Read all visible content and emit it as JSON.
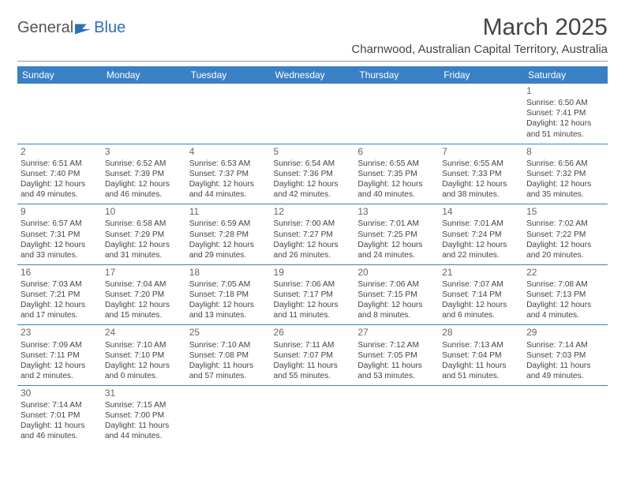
{
  "logo": {
    "text1": "General",
    "text2": "Blue"
  },
  "title": "March 2025",
  "location": "Charnwood, Australian Capital Territory, Australia",
  "colors": {
    "header_bg": "#3a80c4",
    "header_fg": "#ffffff",
    "border": "#3a80c4",
    "text": "#444444",
    "logo_accent": "#2d6fb5"
  },
  "weekdays": [
    "Sunday",
    "Monday",
    "Tuesday",
    "Wednesday",
    "Thursday",
    "Friday",
    "Saturday"
  ],
  "weeks": [
    [
      null,
      null,
      null,
      null,
      null,
      null,
      {
        "n": "1",
        "sr": "Sunrise: 6:50 AM",
        "ss": "Sunset: 7:41 PM",
        "d1": "Daylight: 12 hours",
        "d2": "and 51 minutes."
      }
    ],
    [
      {
        "n": "2",
        "sr": "Sunrise: 6:51 AM",
        "ss": "Sunset: 7:40 PM",
        "d1": "Daylight: 12 hours",
        "d2": "and 49 minutes."
      },
      {
        "n": "3",
        "sr": "Sunrise: 6:52 AM",
        "ss": "Sunset: 7:39 PM",
        "d1": "Daylight: 12 hours",
        "d2": "and 46 minutes."
      },
      {
        "n": "4",
        "sr": "Sunrise: 6:53 AM",
        "ss": "Sunset: 7:37 PM",
        "d1": "Daylight: 12 hours",
        "d2": "and 44 minutes."
      },
      {
        "n": "5",
        "sr": "Sunrise: 6:54 AM",
        "ss": "Sunset: 7:36 PM",
        "d1": "Daylight: 12 hours",
        "d2": "and 42 minutes."
      },
      {
        "n": "6",
        "sr": "Sunrise: 6:55 AM",
        "ss": "Sunset: 7:35 PM",
        "d1": "Daylight: 12 hours",
        "d2": "and 40 minutes."
      },
      {
        "n": "7",
        "sr": "Sunrise: 6:55 AM",
        "ss": "Sunset: 7:33 PM",
        "d1": "Daylight: 12 hours",
        "d2": "and 38 minutes."
      },
      {
        "n": "8",
        "sr": "Sunrise: 6:56 AM",
        "ss": "Sunset: 7:32 PM",
        "d1": "Daylight: 12 hours",
        "d2": "and 35 minutes."
      }
    ],
    [
      {
        "n": "9",
        "sr": "Sunrise: 6:57 AM",
        "ss": "Sunset: 7:31 PM",
        "d1": "Daylight: 12 hours",
        "d2": "and 33 minutes."
      },
      {
        "n": "10",
        "sr": "Sunrise: 6:58 AM",
        "ss": "Sunset: 7:29 PM",
        "d1": "Daylight: 12 hours",
        "d2": "and 31 minutes."
      },
      {
        "n": "11",
        "sr": "Sunrise: 6:59 AM",
        "ss": "Sunset: 7:28 PM",
        "d1": "Daylight: 12 hours",
        "d2": "and 29 minutes."
      },
      {
        "n": "12",
        "sr": "Sunrise: 7:00 AM",
        "ss": "Sunset: 7:27 PM",
        "d1": "Daylight: 12 hours",
        "d2": "and 26 minutes."
      },
      {
        "n": "13",
        "sr": "Sunrise: 7:01 AM",
        "ss": "Sunset: 7:25 PM",
        "d1": "Daylight: 12 hours",
        "d2": "and 24 minutes."
      },
      {
        "n": "14",
        "sr": "Sunrise: 7:01 AM",
        "ss": "Sunset: 7:24 PM",
        "d1": "Daylight: 12 hours",
        "d2": "and 22 minutes."
      },
      {
        "n": "15",
        "sr": "Sunrise: 7:02 AM",
        "ss": "Sunset: 7:22 PM",
        "d1": "Daylight: 12 hours",
        "d2": "and 20 minutes."
      }
    ],
    [
      {
        "n": "16",
        "sr": "Sunrise: 7:03 AM",
        "ss": "Sunset: 7:21 PM",
        "d1": "Daylight: 12 hours",
        "d2": "and 17 minutes."
      },
      {
        "n": "17",
        "sr": "Sunrise: 7:04 AM",
        "ss": "Sunset: 7:20 PM",
        "d1": "Daylight: 12 hours",
        "d2": "and 15 minutes."
      },
      {
        "n": "18",
        "sr": "Sunrise: 7:05 AM",
        "ss": "Sunset: 7:18 PM",
        "d1": "Daylight: 12 hours",
        "d2": "and 13 minutes."
      },
      {
        "n": "19",
        "sr": "Sunrise: 7:06 AM",
        "ss": "Sunset: 7:17 PM",
        "d1": "Daylight: 12 hours",
        "d2": "and 11 minutes."
      },
      {
        "n": "20",
        "sr": "Sunrise: 7:06 AM",
        "ss": "Sunset: 7:15 PM",
        "d1": "Daylight: 12 hours",
        "d2": "and 8 minutes."
      },
      {
        "n": "21",
        "sr": "Sunrise: 7:07 AM",
        "ss": "Sunset: 7:14 PM",
        "d1": "Daylight: 12 hours",
        "d2": "and 6 minutes."
      },
      {
        "n": "22",
        "sr": "Sunrise: 7:08 AM",
        "ss": "Sunset: 7:13 PM",
        "d1": "Daylight: 12 hours",
        "d2": "and 4 minutes."
      }
    ],
    [
      {
        "n": "23",
        "sr": "Sunrise: 7:09 AM",
        "ss": "Sunset: 7:11 PM",
        "d1": "Daylight: 12 hours",
        "d2": "and 2 minutes."
      },
      {
        "n": "24",
        "sr": "Sunrise: 7:10 AM",
        "ss": "Sunset: 7:10 PM",
        "d1": "Daylight: 12 hours",
        "d2": "and 0 minutes."
      },
      {
        "n": "25",
        "sr": "Sunrise: 7:10 AM",
        "ss": "Sunset: 7:08 PM",
        "d1": "Daylight: 11 hours",
        "d2": "and 57 minutes."
      },
      {
        "n": "26",
        "sr": "Sunrise: 7:11 AM",
        "ss": "Sunset: 7:07 PM",
        "d1": "Daylight: 11 hours",
        "d2": "and 55 minutes."
      },
      {
        "n": "27",
        "sr": "Sunrise: 7:12 AM",
        "ss": "Sunset: 7:05 PM",
        "d1": "Daylight: 11 hours",
        "d2": "and 53 minutes."
      },
      {
        "n": "28",
        "sr": "Sunrise: 7:13 AM",
        "ss": "Sunset: 7:04 PM",
        "d1": "Daylight: 11 hours",
        "d2": "and 51 minutes."
      },
      {
        "n": "29",
        "sr": "Sunrise: 7:14 AM",
        "ss": "Sunset: 7:03 PM",
        "d1": "Daylight: 11 hours",
        "d2": "and 49 minutes."
      }
    ],
    [
      {
        "n": "30",
        "sr": "Sunrise: 7:14 AM",
        "ss": "Sunset: 7:01 PM",
        "d1": "Daylight: 11 hours",
        "d2": "and 46 minutes."
      },
      {
        "n": "31",
        "sr": "Sunrise: 7:15 AM",
        "ss": "Sunset: 7:00 PM",
        "d1": "Daylight: 11 hours",
        "d2": "and 44 minutes."
      },
      null,
      null,
      null,
      null,
      null
    ]
  ]
}
